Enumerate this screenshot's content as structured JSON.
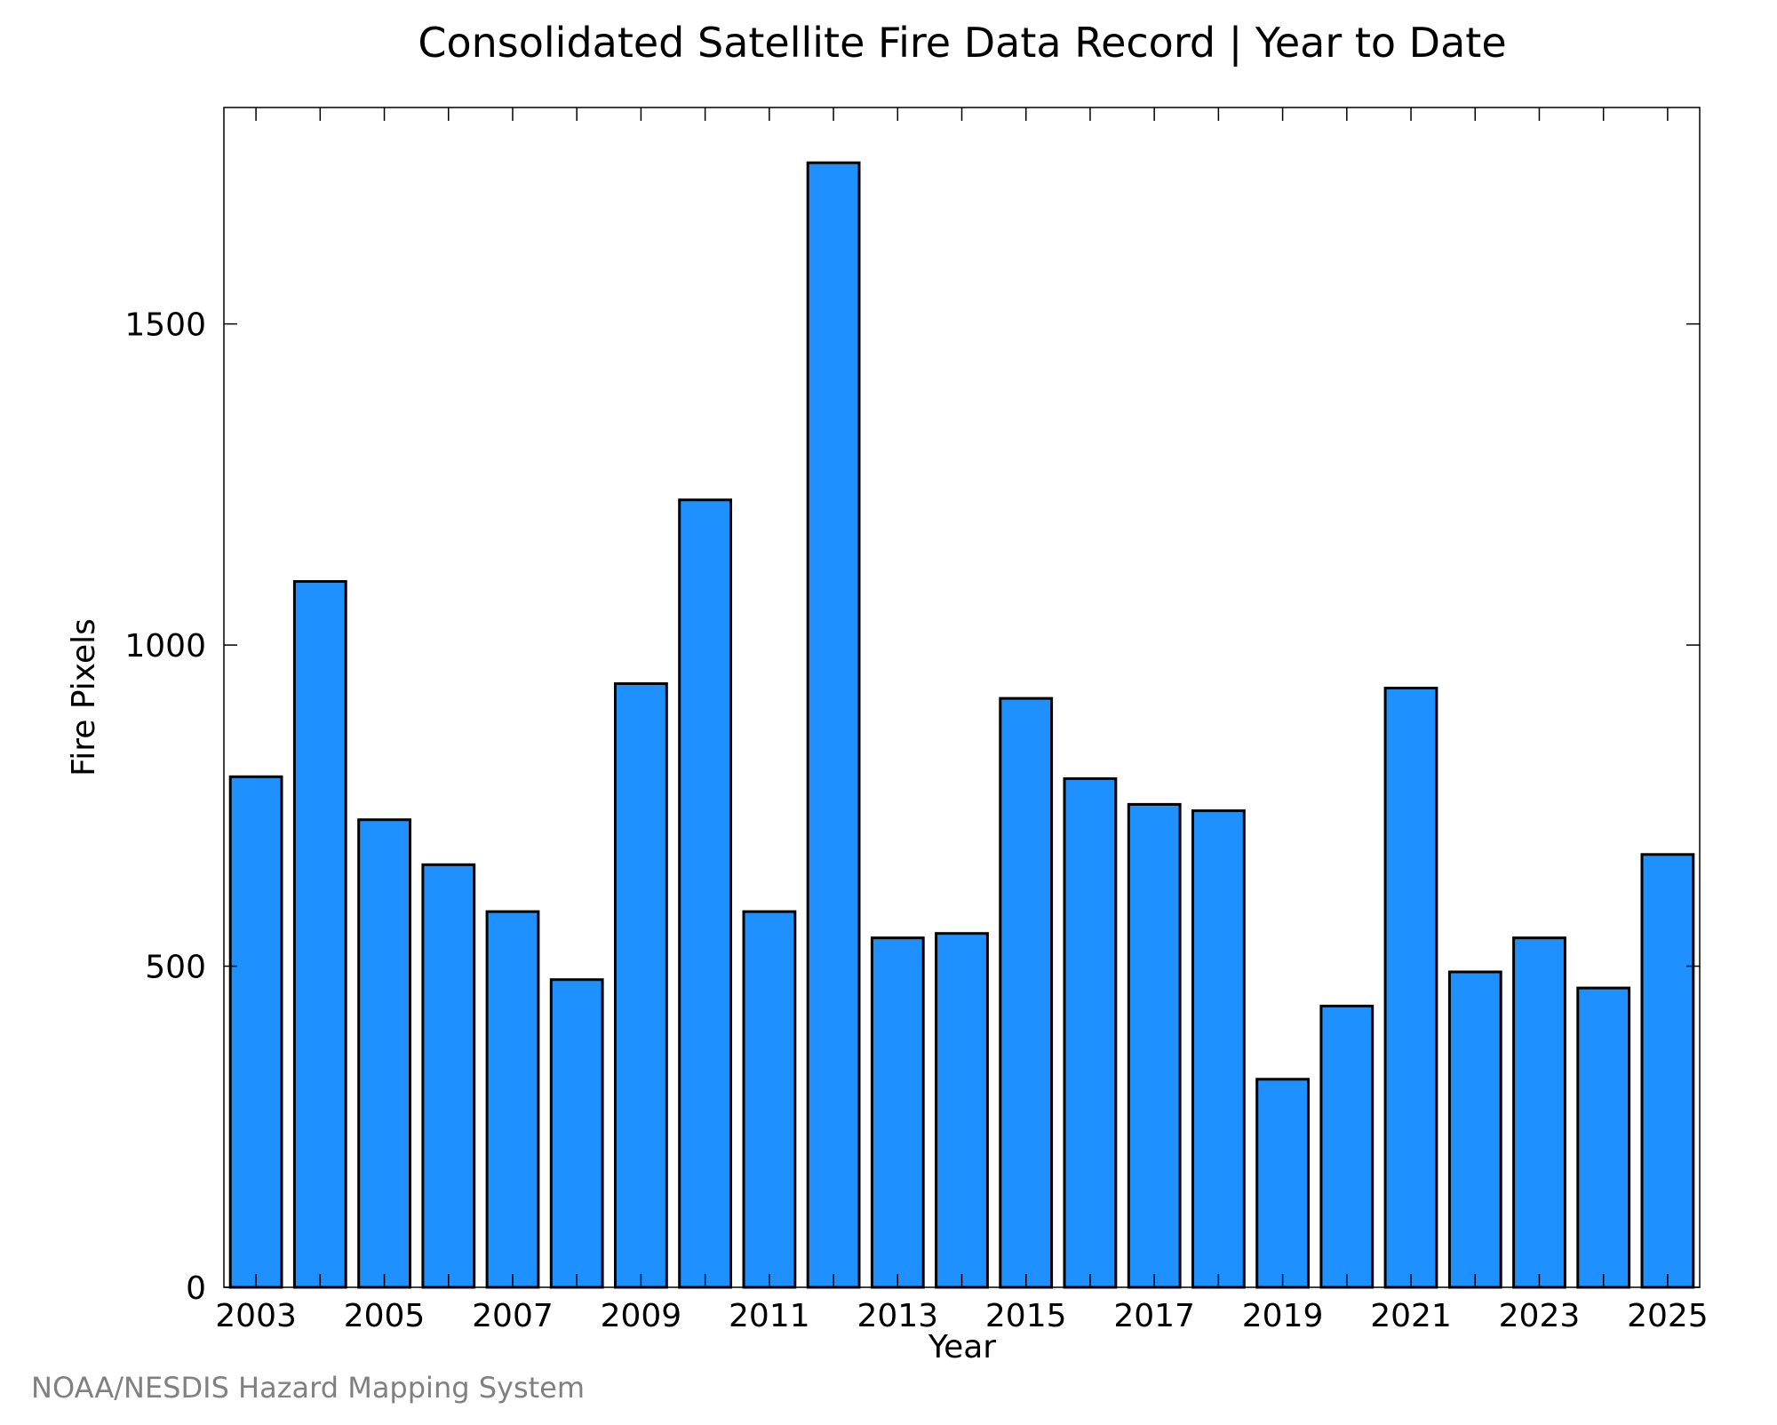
{
  "chart_data": {
    "type": "bar",
    "title": "Consolidated Satellite Fire Data Record | Year to Date",
    "xlabel": "Year",
    "ylabel": "Fire Pixels",
    "categories": [
      2003,
      2004,
      2005,
      2006,
      2007,
      2008,
      2009,
      2010,
      2011,
      2012,
      2013,
      2014,
      2015,
      2016,
      2017,
      2018,
      2019,
      2020,
      2021,
      2022,
      2023,
      2024,
      2025
    ],
    "values": [
      795,
      1099,
      728,
      658,
      585,
      479,
      940,
      1226,
      585,
      1751,
      544,
      551,
      917,
      792,
      752,
      742,
      324,
      438,
      933,
      491,
      544,
      466,
      674
    ],
    "ylim": [
      0,
      1837
    ],
    "xlim": [
      2002.5,
      2025.5
    ],
    "yticks": [
      0,
      500,
      1000,
      1500
    ],
    "xticks": [
      2003,
      2005,
      2007,
      2009,
      2011,
      2013,
      2015,
      2017,
      2019,
      2021,
      2023,
      2025
    ],
    "bar_color": "#1e90ff",
    "bar_edge_color": "#000000",
    "grid": false,
    "legend": "none"
  },
  "footer": {
    "credit": "NOAA/NESDIS Hazard Mapping System"
  }
}
